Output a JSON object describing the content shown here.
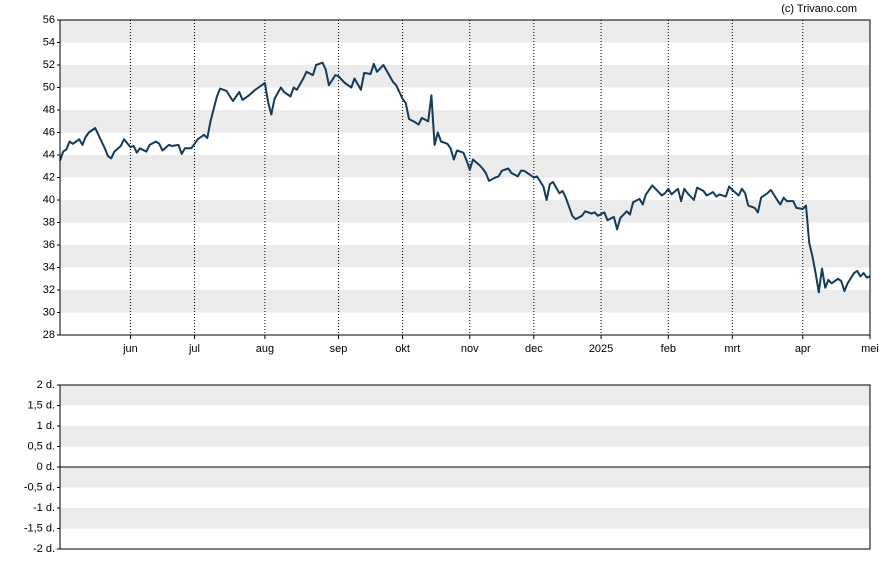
{
  "chart_data": [
    {
      "type": "line",
      "annotation": "(c) Trivano.com",
      "x": [
        0,
        1,
        2,
        3,
        4,
        6,
        7,
        8,
        9,
        11,
        12,
        14,
        15,
        16,
        17,
        19,
        20,
        22,
        23,
        24,
        25,
        27,
        28,
        30,
        31,
        32,
        34,
        35,
        37,
        38,
        39,
        41,
        42,
        43,
        45,
        46,
        47,
        49,
        50,
        52,
        54,
        56,
        57,
        59,
        61,
        62,
        64,
        65,
        66,
        67,
        69,
        70,
        72,
        73,
        74,
        76,
        77,
        79,
        80,
        82,
        83,
        84,
        86,
        87,
        89,
        91,
        92,
        94,
        95,
        97,
        98,
        99,
        101,
        102,
        104,
        105,
        107,
        108,
        109,
        111,
        112,
        113,
        115,
        116,
        117,
        118,
        119,
        121,
        122,
        123,
        124,
        126,
        127,
        128,
        129,
        131,
        132,
        133,
        134,
        136,
        137,
        138,
        140,
        141,
        143,
        144,
        145,
        147,
        148,
        149,
        151,
        152,
        153,
        154,
        156,
        157,
        158,
        160,
        161,
        163,
        164,
        166,
        167,
        168,
        170,
        171,
        173,
        174,
        175,
        177,
        178,
        179,
        181,
        182,
        183,
        185,
        186,
        188,
        189,
        190,
        191,
        193,
        194,
        195,
        196,
        198,
        199,
        201,
        202,
        204,
        205,
        206,
        208,
        209,
        210,
        212,
        213,
        214,
        215,
        217,
        218,
        219,
        221,
        222,
        224,
        225,
        226,
        227,
        229,
        230,
        232,
        233,
        234,
        235,
        236,
        237,
        238,
        239,
        240,
        241,
        243,
        244,
        245,
        246,
        248,
        249,
        250,
        251,
        252,
        253
      ],
      "series": [
        {
          "color": "#133b5c",
          "values": [
            43.5,
            44.3,
            44.5,
            45.2,
            45.0,
            45.4,
            44.9,
            45.6,
            46.0,
            46.4,
            45.8,
            44.6,
            43.9,
            43.7,
            44.3,
            44.8,
            45.4,
            44.7,
            44.8,
            44.2,
            44.6,
            44.3,
            44.9,
            45.2,
            45.0,
            44.4,
            44.9,
            44.8,
            44.9,
            44.1,
            44.6,
            44.6,
            45.0,
            45.4,
            45.8,
            45.5,
            47.0,
            49.2,
            49.9,
            49.7,
            48.8,
            49.6,
            48.9,
            49.3,
            49.8,
            50.0,
            50.4,
            48.7,
            47.6,
            49.0,
            50.0,
            49.6,
            49.2,
            50.0,
            49.8,
            50.8,
            51.4,
            51.1,
            52.0,
            52.2,
            51.6,
            50.2,
            51.1,
            51.0,
            50.4,
            50.0,
            50.8,
            49.8,
            51.3,
            51.2,
            52.1,
            51.4,
            52.0,
            51.5,
            50.5,
            50.2,
            49.0,
            48.6,
            47.2,
            46.9,
            46.7,
            47.3,
            47.0,
            49.3,
            44.9,
            46.0,
            45.2,
            45.0,
            44.6,
            43.6,
            44.4,
            44.2,
            43.5,
            42.7,
            43.6,
            43.1,
            42.8,
            42.4,
            41.7,
            42.0,
            42.1,
            42.6,
            42.8,
            42.4,
            42.1,
            42.6,
            42.6,
            42.2,
            42.0,
            42.1,
            41.2,
            40.0,
            41.4,
            41.6,
            40.6,
            40.8,
            40.2,
            38.6,
            38.3,
            38.6,
            39.0,
            38.8,
            38.9,
            38.6,
            38.9,
            38.2,
            38.5,
            37.4,
            38.4,
            39.0,
            38.7,
            39.8,
            40.1,
            39.6,
            40.5,
            41.3,
            41.0,
            40.4,
            40.6,
            41.0,
            40.5,
            41.0,
            39.9,
            41.0,
            40.6,
            40.0,
            41.1,
            40.8,
            40.4,
            40.7,
            40.3,
            40.5,
            40.3,
            41.2,
            40.9,
            40.4,
            41.0,
            40.6,
            39.5,
            39.3,
            38.9,
            40.2,
            40.6,
            40.9,
            40.0,
            39.6,
            40.2,
            39.9,
            39.9,
            39.3,
            39.2,
            39.5,
            36.2,
            35.0,
            33.5,
            31.8,
            33.9,
            32.2,
            32.9,
            32.6,
            33.0,
            32.8,
            31.9,
            32.6,
            33.5,
            33.7,
            33.2,
            33.5,
            33.1,
            33.2
          ]
        }
      ],
      "xlim": [
        0,
        253
      ],
      "xticks": [
        {
          "value": 22,
          "label": "jun"
        },
        {
          "value": 42,
          "label": "jul"
        },
        {
          "value": 64,
          "label": "aug"
        },
        {
          "value": 87,
          "label": "sep"
        },
        {
          "value": 107,
          "label": "okt"
        },
        {
          "value": 128,
          "label": "nov"
        },
        {
          "value": 148,
          "label": "dec"
        },
        {
          "value": 169,
          "label": "2025"
        },
        {
          "value": 190,
          "label": "feb"
        },
        {
          "value": 210,
          "label": "mrt"
        },
        {
          "value": 232,
          "label": "apr"
        },
        {
          "value": 253,
          "label": "mei"
        }
      ],
      "ylim": [
        28,
        56
      ],
      "yticks": [
        28,
        30,
        32,
        34,
        36,
        38,
        40,
        42,
        44,
        46,
        48,
        50,
        52,
        54,
        56
      ],
      "grid": true
    },
    {
      "type": "bar",
      "ylim": [
        -2,
        2
      ],
      "yticks": [
        {
          "value": -2,
          "label": "-2 d."
        },
        {
          "value": -1.5,
          "label": "-1,5 d."
        },
        {
          "value": -1,
          "label": "-1 d."
        },
        {
          "value": -0.5,
          "label": "-0,5 d."
        },
        {
          "value": 0,
          "label": "0 d."
        },
        {
          "value": 0.5,
          "label": "0,5 d."
        },
        {
          "value": 1,
          "label": "1 d."
        },
        {
          "value": 1.5,
          "label": "1,5 d."
        },
        {
          "value": 2,
          "label": "2 d."
        }
      ],
      "grid": true
    }
  ]
}
